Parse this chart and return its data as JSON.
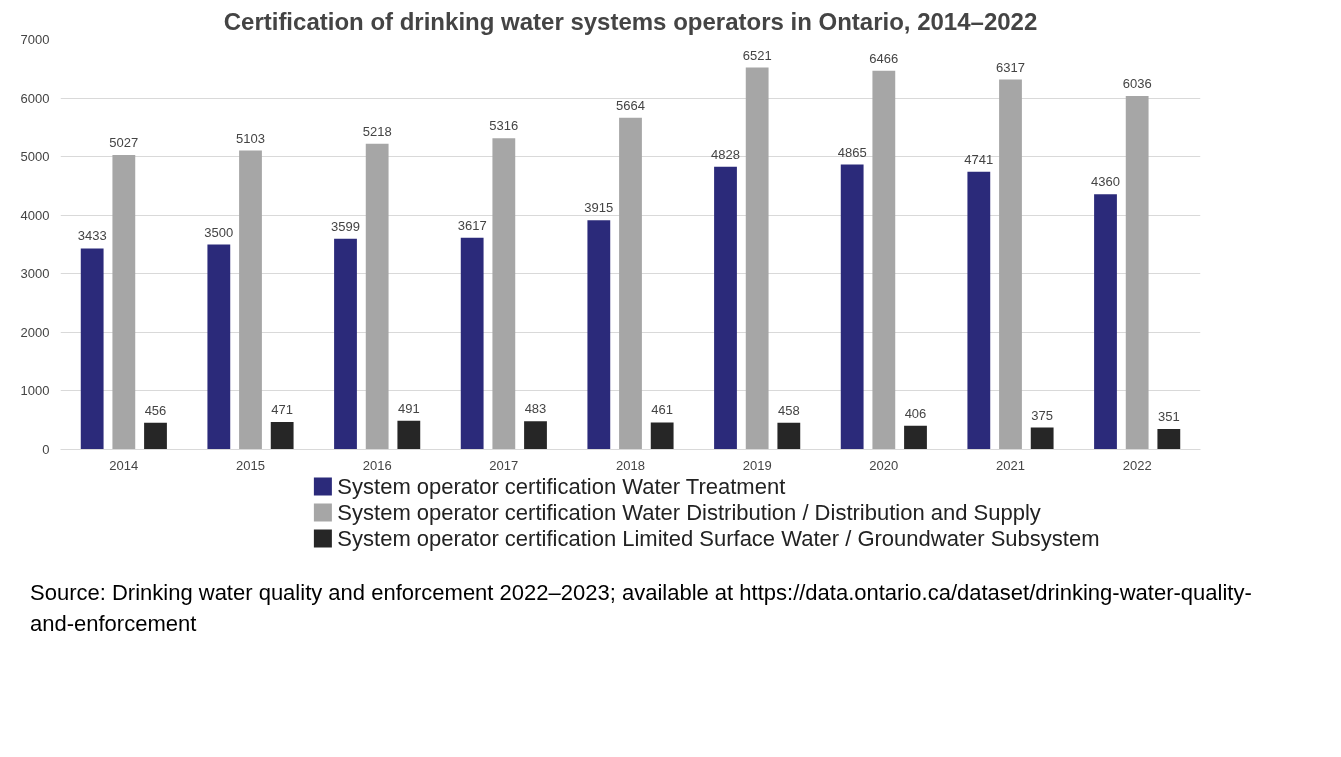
{
  "chart_data": {
    "type": "bar",
    "title": "Certification of drinking water systems operators in Ontario, 2014–2022",
    "categories": [
      "2014",
      "2015",
      "2016",
      "2017",
      "2018",
      "2019",
      "2020",
      "2021",
      "2022"
    ],
    "series": [
      {
        "name": "System operator certification Water Treatment",
        "color": "#2b2a7a",
        "values": [
          3433,
          3500,
          3599,
          3617,
          3915,
          4828,
          4865,
          4741,
          4360
        ]
      },
      {
        "name": "System operator certification Water Distribution / Distribution and Supply",
        "color": "#a6a6a6",
        "values": [
          5027,
          5103,
          5218,
          5316,
          5664,
          6521,
          6466,
          6317,
          6036
        ]
      },
      {
        "name": "System operator certification Limited Surface Water / Groundwater Subsystem",
        "color": "#262626",
        "values": [
          456,
          471,
          491,
          483,
          461,
          458,
          406,
          375,
          351
        ]
      }
    ],
    "ylim": [
      0,
      7000
    ],
    "yticks": [
      0,
      1000,
      2000,
      3000,
      4000,
      5000,
      6000,
      7000
    ],
    "grid": "y",
    "legend": "bottom",
    "data_labels": true,
    "annotations": [
      "Source: Drinking water quality and enforcement 2022–2023; available at https://data.ontario.ca/dataset/drinking-water-quality-and-enforcement"
    ]
  }
}
